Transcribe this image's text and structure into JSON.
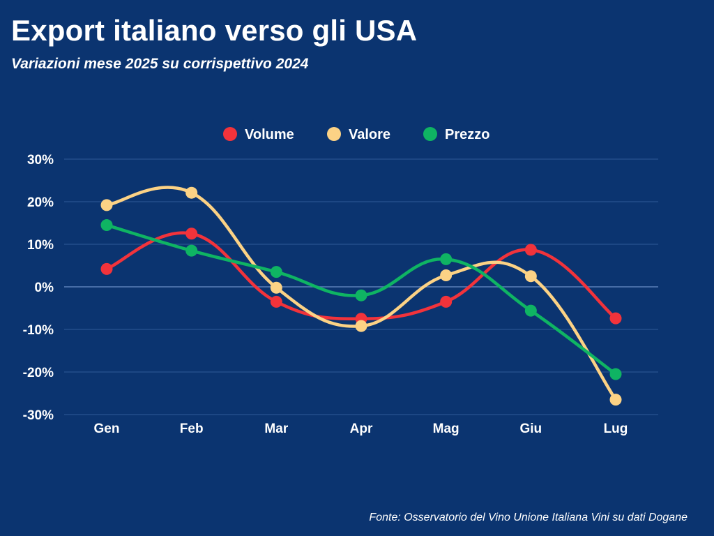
{
  "header": {
    "title": "Export italiano verso gli USA",
    "subtitle": "Variazioni mese 2025 su corrispettivo 2024"
  },
  "footer": {
    "source": "Fonte: Osservatorio del Vino Unione Italiana Vini su dati Dogane"
  },
  "colors": {
    "background": "#0b3470",
    "Volume": "#f2333b",
    "Valore": "#fcd285",
    "Prezzo": "#0fb463",
    "grid": "#2f5a98"
  },
  "chart_data": {
    "type": "line",
    "title": "Export italiano verso gli USA",
    "subtitle": "Variazioni mese 2025 su corrispettivo 2024",
    "xlabel": "",
    "ylabel": "",
    "categories": [
      "Gen",
      "Feb",
      "Mar",
      "Apr",
      "Mag",
      "Giu",
      "Lug"
    ],
    "ylim": [
      -30,
      30
    ],
    "yticks": [
      30,
      20,
      10,
      0,
      -10,
      -20,
      -30
    ],
    "ytick_labels": [
      "30%",
      "20%",
      "10%",
      "0%",
      "-10%",
      "-20%",
      "-30%"
    ],
    "grid": true,
    "legend_position": "top-center",
    "series": [
      {
        "name": "Volume",
        "values": [
          4.2,
          12.5,
          -3.5,
          -7.5,
          -3.5,
          8.7,
          -7.4
        ]
      },
      {
        "name": "Valore",
        "values": [
          19.2,
          22.1,
          -0.2,
          -9.2,
          2.7,
          2.5,
          -26.5
        ]
      },
      {
        "name": "Prezzo",
        "values": [
          14.5,
          8.5,
          3.5,
          -2.0,
          6.5,
          -5.6,
          -20.5
        ]
      }
    ]
  }
}
